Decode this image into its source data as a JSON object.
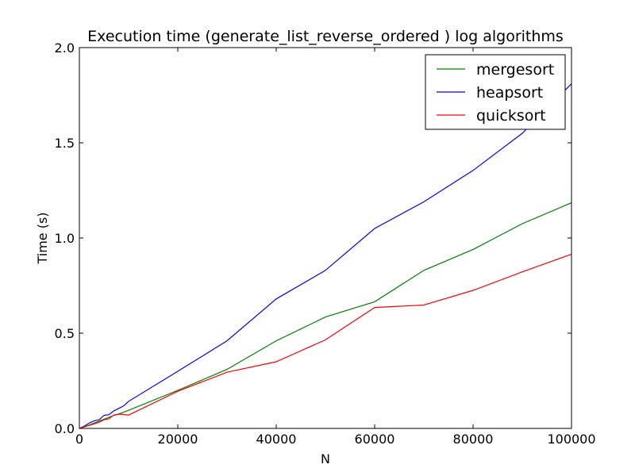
{
  "chart_data": {
    "type": "line",
    "title": "Execution time (generate_list_reverse_ordered ) log algorithms",
    "xlabel": "N",
    "ylabel": "Time (s)",
    "xlim": [
      0,
      100000
    ],
    "ylim": [
      0,
      2.0
    ],
    "x_ticks": [
      0,
      20000,
      40000,
      60000,
      80000,
      100000
    ],
    "x_tick_labels": [
      "0",
      "20000",
      "40000",
      "60000",
      "80000",
      "100000"
    ],
    "y_ticks": [
      0,
      0.5,
      1.0,
      1.5,
      2.0
    ],
    "y_tick_labels": [
      "0.0",
      "0.5",
      "1.0",
      "1.5",
      "2.0"
    ],
    "grid": false,
    "legend_position": "top-right",
    "series": [
      {
        "name": "mergesort",
        "color": "#008000",
        "x": [
          0,
          1000,
          2000,
          3000,
          4000,
          5000,
          6000,
          7000,
          8000,
          9000,
          10000,
          20000,
          30000,
          40000,
          50000,
          60000,
          70000,
          80000,
          90000,
          100000
        ],
        "y": [
          0,
          0.008,
          0.018,
          0.028,
          0.038,
          0.048,
          0.058,
          0.068,
          0.076,
          0.085,
          0.095,
          0.2,
          0.31,
          0.46,
          0.585,
          0.665,
          0.83,
          0.94,
          1.075,
          1.185
        ]
      },
      {
        "name": "heapsort",
        "color": "#0000ff",
        "x": [
          0,
          1000,
          2000,
          3000,
          4000,
          5000,
          6000,
          7000,
          8000,
          9000,
          10000,
          20000,
          30000,
          40000,
          50000,
          60000,
          70000,
          80000,
          90000,
          100000
        ],
        "y": [
          0,
          0.012,
          0.028,
          0.04,
          0.045,
          0.068,
          0.072,
          0.092,
          0.105,
          0.118,
          0.142,
          0.3,
          0.46,
          0.68,
          0.83,
          1.05,
          1.19,
          1.355,
          1.55,
          1.81
        ]
      },
      {
        "name": "quicksort",
        "color": "#ff0000",
        "x": [
          0,
          1000,
          2000,
          3000,
          4000,
          5000,
          6000,
          7000,
          8000,
          9000,
          10000,
          20000,
          30000,
          40000,
          50000,
          60000,
          70000,
          80000,
          90000,
          100000
        ],
        "y": [
          0,
          0.008,
          0.016,
          0.024,
          0.032,
          0.045,
          0.05,
          0.07,
          0.075,
          0.073,
          0.07,
          0.195,
          0.295,
          0.35,
          0.465,
          0.635,
          0.648,
          0.725,
          0.822,
          0.915
        ]
      }
    ]
  }
}
